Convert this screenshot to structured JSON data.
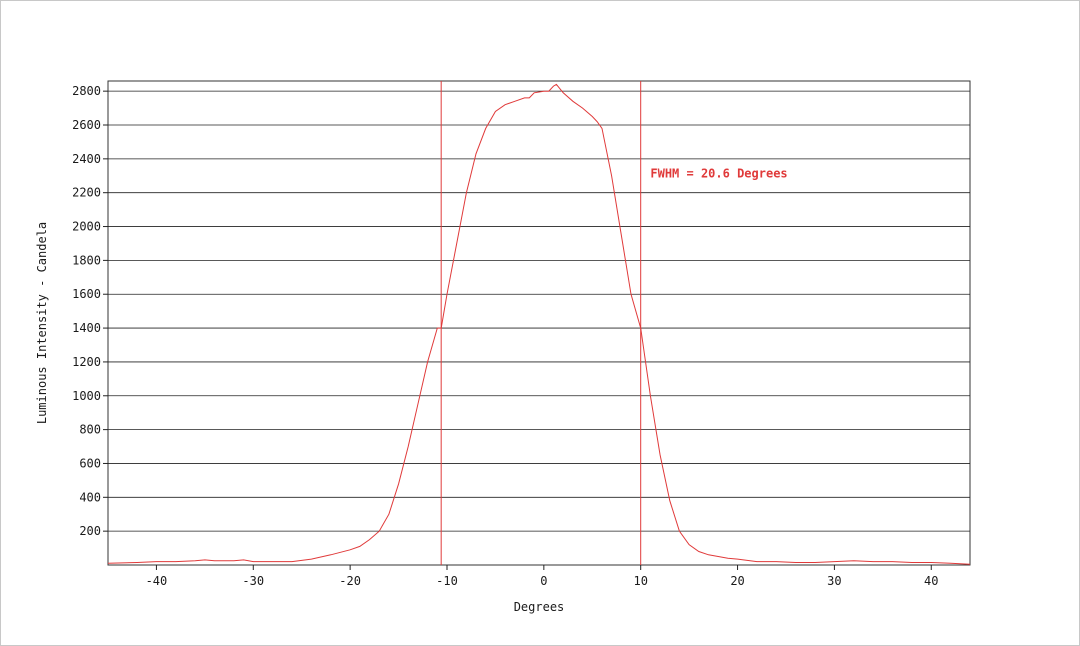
{
  "chart_data": {
    "type": "line",
    "title": "",
    "xlabel": "Degrees",
    "ylabel": "Luminous Intensity - Candela",
    "xlim": [
      -45,
      44
    ],
    "ylim": [
      0,
      2860
    ],
    "xticks": [
      -40,
      -30,
      -20,
      -10,
      0,
      10,
      20,
      30,
      40
    ],
    "yticks": [
      200,
      400,
      600,
      800,
      1000,
      1200,
      1400,
      1600,
      1800,
      2000,
      2200,
      2400,
      2600,
      2800
    ],
    "grid": "horizontal",
    "line_color": "#e03a3a",
    "grid_color": "#222222",
    "vlines": [
      -10.6,
      10.0
    ],
    "annotation": "FWHM = 20.6 Degrees",
    "annotation_position": {
      "x": 11,
      "y": 2290
    },
    "series": [
      {
        "x": [
          -45,
          -42,
          -40,
          -38,
          -36,
          -35,
          -34,
          -32,
          -31,
          -30,
          -28,
          -26,
          -24,
          -22,
          -20,
          -19,
          -18,
          -17,
          -16,
          -15,
          -14,
          -13,
          -12,
          -11,
          -10.6,
          -10,
          -9,
          -8,
          -7,
          -6,
          -5,
          -4,
          -3,
          -2,
          -1.5,
          -1,
          0,
          0.5,
          1,
          1.3,
          2,
          3,
          4,
          5,
          5.5,
          6,
          7,
          8,
          9,
          10,
          11,
          12,
          13,
          14,
          15,
          16,
          17,
          18,
          19,
          20,
          22,
          24,
          26,
          28,
          30,
          32,
          34,
          36,
          38,
          40,
          42,
          44
        ],
        "y": [
          10,
          15,
          20,
          20,
          25,
          30,
          25,
          25,
          30,
          20,
          20,
          20,
          35,
          60,
          90,
          110,
          150,
          200,
          300,
          480,
          700,
          950,
          1200,
          1400,
          1400,
          1600,
          1900,
          2200,
          2430,
          2580,
          2680,
          2720,
          2740,
          2760,
          2760,
          2790,
          2800,
          2800,
          2830,
          2840,
          2790,
          2740,
          2700,
          2650,
          2620,
          2580,
          2300,
          1950,
          1600,
          1400,
          1000,
          650,
          380,
          200,
          120,
          80,
          60,
          50,
          40,
          35,
          20,
          20,
          15,
          15,
          20,
          25,
          20,
          20,
          15,
          15,
          10,
          5
        ]
      }
    ]
  }
}
